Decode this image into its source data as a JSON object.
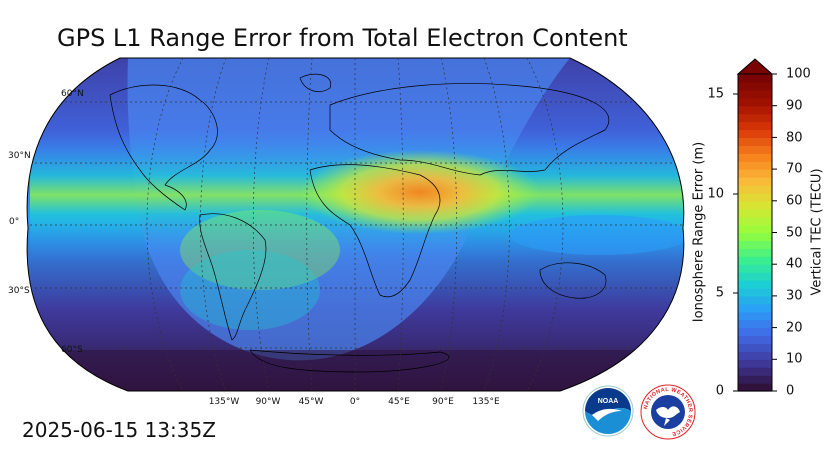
{
  "title": "GPS L1 Range Error from Total Electron Content",
  "timestamp": "2025-06-15 13:35Z",
  "map": {
    "projection": "Robinson",
    "lat_labels": [
      "60°N",
      "30°N",
      "0°",
      "30°S",
      "60°S"
    ],
    "lon_labels": [
      "135°W",
      "90°W",
      "45°W",
      "0°",
      "45°E",
      "90°E",
      "135°E"
    ],
    "daylight_terminator": "shaded sunlit region",
    "gridlines": "dotted"
  },
  "colorbar": {
    "left_label": "Ionosphere Range Error (m)",
    "right_label": "Vertical TEC (TECU)",
    "left_ticks": [
      "0",
      "5",
      "10",
      "15"
    ],
    "right_ticks": [
      "0",
      "10",
      "20",
      "30",
      "40",
      "50",
      "60",
      "70",
      "80",
      "90",
      "100"
    ],
    "extend": "max",
    "colors": [
      "#30123b",
      "#3e3a9c",
      "#4168e4",
      "#2b9df8",
      "#1ccfd4",
      "#3df08a",
      "#96fd3d",
      "#d4e734",
      "#faba39",
      "#f6811e",
      "#d93806",
      "#a11201",
      "#7a0403"
    ]
  },
  "logos": {
    "noaa": "NOAA",
    "nws": "NATIONAL WEATHER SERVICE"
  }
}
